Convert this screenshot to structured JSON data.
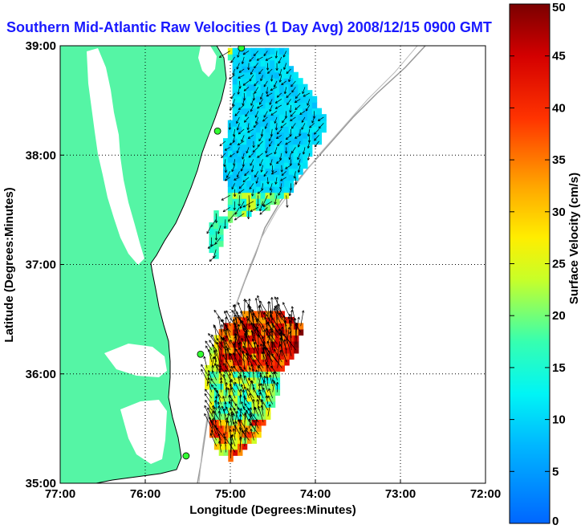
{
  "chart_data": {
    "type": "heatmap",
    "title": "Southern Mid-Atlantic Raw Velocities (1 Day Avg) 2008/12/15 0900 GMT",
    "xlabel": "Longitude (Degrees:Minutes)",
    "ylabel": "Latitude (Degrees:Minutes)",
    "xlim": [
      -77,
      -72
    ],
    "ylim": [
      35,
      39
    ],
    "x_ticks": [
      {
        "value": -77,
        "label": "77:00"
      },
      {
        "value": -76,
        "label": "76:00"
      },
      {
        "value": -75,
        "label": "75:00"
      },
      {
        "value": -74,
        "label": "74:00"
      },
      {
        "value": -73,
        "label": "73:00"
      },
      {
        "value": -72,
        "label": "72:00"
      }
    ],
    "y_ticks": [
      {
        "value": 35,
        "label": "35:00"
      },
      {
        "value": 36,
        "label": "36:00"
      },
      {
        "value": 37,
        "label": "37:00"
      },
      {
        "value": 38,
        "label": "38:00"
      },
      {
        "value": 39,
        "label": "39:00"
      }
    ],
    "grid": true,
    "colorbar": {
      "label": "Surface Velocity (cm/s)",
      "range": [
        0,
        50
      ],
      "ticks": [
        0,
        5,
        10,
        15,
        20,
        25,
        30,
        35,
        40,
        45,
        50
      ]
    },
    "colors": {
      "land": "#55f5a5",
      "water": "#ffffff",
      "coastline": "#000000",
      "bathymetry": "#999999",
      "station": "#33ff33",
      "title": "#1a1aff"
    },
    "stations": [
      {
        "lon": -74.87,
        "lat": 38.98
      },
      {
        "lon": -75.15,
        "lat": 38.22
      },
      {
        "lon": -75.35,
        "lat": 36.18
      },
      {
        "lon": -75.52,
        "lat": 35.25
      }
    ],
    "north_field": {
      "lon_range": [
        -75.25,
        -73.85
      ],
      "lat_range": [
        37.4,
        39.0
      ],
      "speed_range_cm_s": [
        5,
        25
      ],
      "direction": "southward"
    },
    "south_field": {
      "lon_range": [
        -75.3,
        -74.15
      ],
      "lat_range": [
        35.2,
        36.8
      ],
      "speed_range_cm_s": [
        10,
        50
      ],
      "direction": "northward"
    }
  }
}
